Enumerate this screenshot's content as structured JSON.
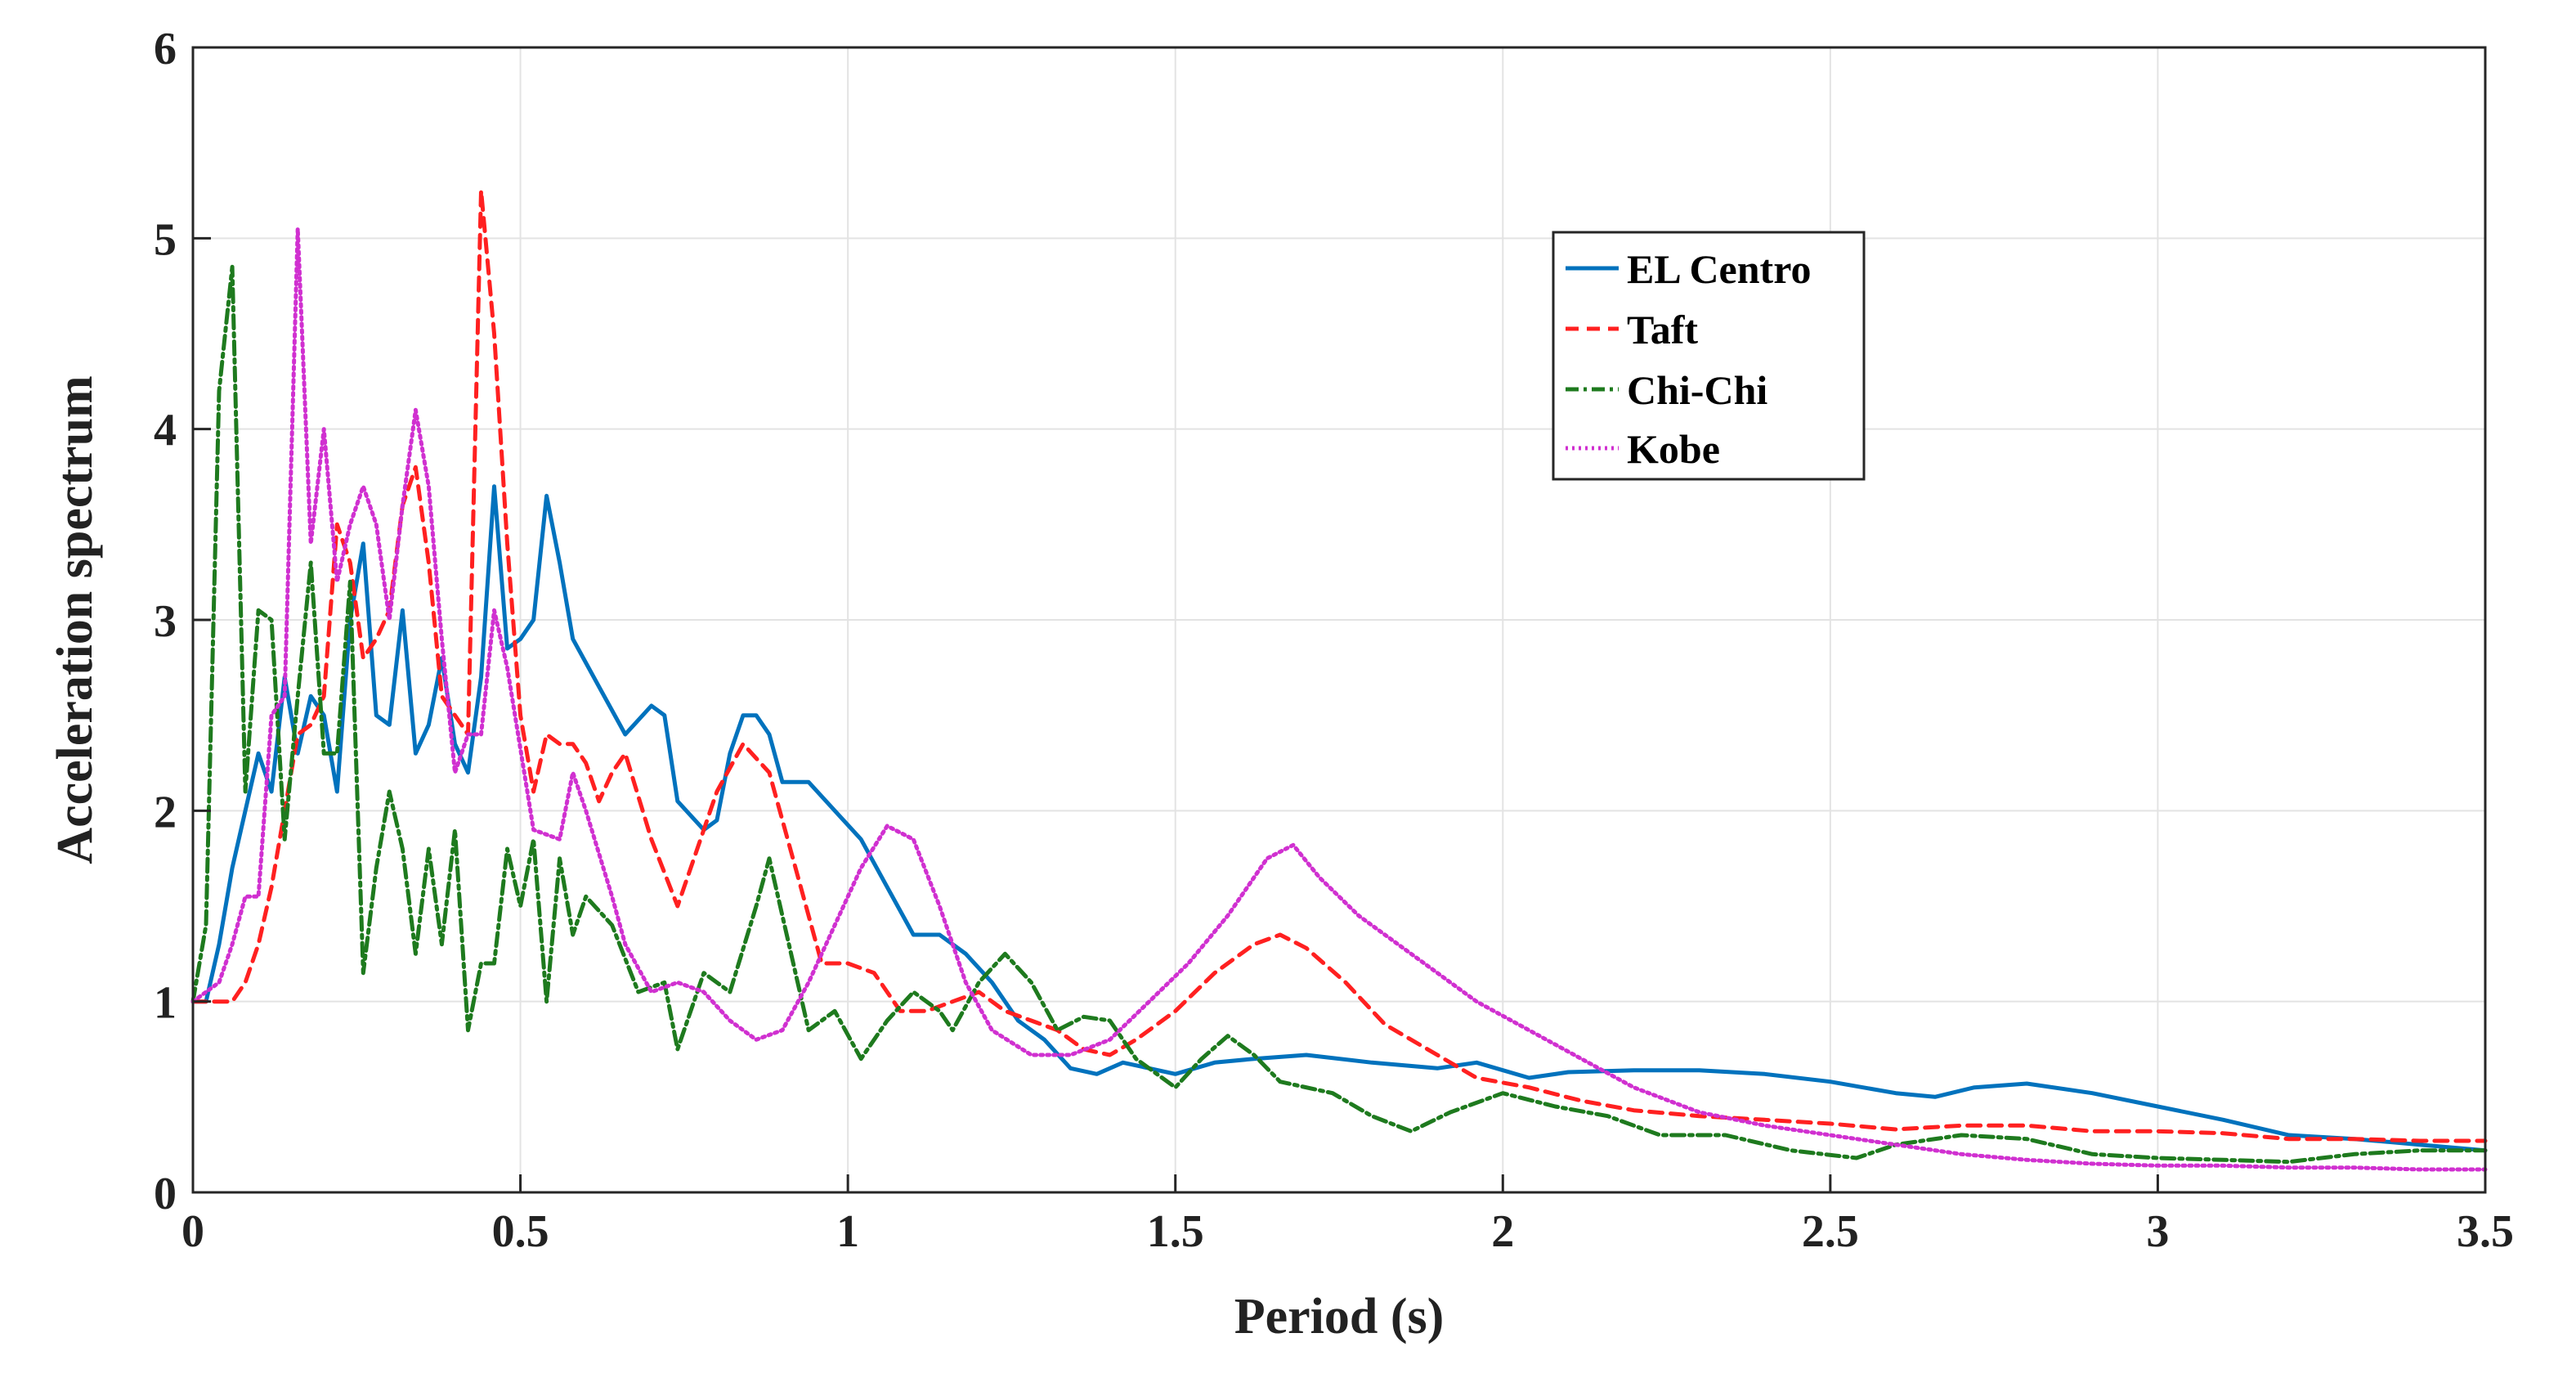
{
  "chart_data": {
    "type": "line",
    "xlabel": "Period (s)",
    "ylabel": "Acceleration spectrum",
    "xlim": [
      0,
      3.5
    ],
    "ylim": [
      0,
      6
    ],
    "xticks": [
      "0",
      "0.5",
      "1",
      "1.5",
      "2",
      "2.5",
      "3",
      "3.5"
    ],
    "yticks": [
      "0",
      "1",
      "2",
      "3",
      "4",
      "5",
      "6"
    ],
    "grid": true,
    "legend_position": "top-right",
    "series": [
      {
        "name": "EL Centro",
        "color": "#0072BD",
        "style": "solid",
        "points": [
          [
            0,
            1.0
          ],
          [
            0.02,
            1.0
          ],
          [
            0.04,
            1.3
          ],
          [
            0.06,
            1.7
          ],
          [
            0.08,
            2.0
          ],
          [
            0.1,
            2.3
          ],
          [
            0.12,
            2.1
          ],
          [
            0.14,
            2.7
          ],
          [
            0.16,
            2.3
          ],
          [
            0.18,
            2.6
          ],
          [
            0.2,
            2.5
          ],
          [
            0.22,
            2.1
          ],
          [
            0.24,
            3.0
          ],
          [
            0.26,
            3.4
          ],
          [
            0.28,
            2.5
          ],
          [
            0.3,
            2.45
          ],
          [
            0.32,
            3.05
          ],
          [
            0.34,
            2.3
          ],
          [
            0.36,
            2.45
          ],
          [
            0.38,
            2.8
          ],
          [
            0.4,
            2.35
          ],
          [
            0.42,
            2.2
          ],
          [
            0.44,
            2.7
          ],
          [
            0.46,
            3.7
          ],
          [
            0.48,
            2.85
          ],
          [
            0.5,
            2.9
          ],
          [
            0.52,
            3.0
          ],
          [
            0.54,
            3.65
          ],
          [
            0.56,
            3.3
          ],
          [
            0.58,
            2.9
          ],
          [
            0.62,
            2.65
          ],
          [
            0.66,
            2.4
          ],
          [
            0.7,
            2.55
          ],
          [
            0.72,
            2.5
          ],
          [
            0.74,
            2.05
          ],
          [
            0.78,
            1.9
          ],
          [
            0.8,
            1.95
          ],
          [
            0.82,
            2.3
          ],
          [
            0.84,
            2.5
          ],
          [
            0.86,
            2.5
          ],
          [
            0.88,
            2.4
          ],
          [
            0.9,
            2.15
          ],
          [
            0.94,
            2.15
          ],
          [
            0.98,
            2.0
          ],
          [
            1.02,
            1.85
          ],
          [
            1.06,
            1.6
          ],
          [
            1.1,
            1.35
          ],
          [
            1.14,
            1.35
          ],
          [
            1.18,
            1.25
          ],
          [
            1.22,
            1.1
          ],
          [
            1.26,
            0.9
          ],
          [
            1.3,
            0.8
          ],
          [
            1.34,
            0.65
          ],
          [
            1.38,
            0.62
          ],
          [
            1.42,
            0.68
          ],
          [
            1.46,
            0.65
          ],
          [
            1.5,
            0.62
          ],
          [
            1.56,
            0.68
          ],
          [
            1.62,
            0.7
          ],
          [
            1.7,
            0.72
          ],
          [
            1.8,
            0.68
          ],
          [
            1.9,
            0.65
          ],
          [
            1.96,
            0.68
          ],
          [
            2.04,
            0.6
          ],
          [
            2.1,
            0.63
          ],
          [
            2.2,
            0.64
          ],
          [
            2.3,
            0.64
          ],
          [
            2.4,
            0.62
          ],
          [
            2.5,
            0.58
          ],
          [
            2.6,
            0.52
          ],
          [
            2.66,
            0.5
          ],
          [
            2.72,
            0.55
          ],
          [
            2.8,
            0.57
          ],
          [
            2.9,
            0.52
          ],
          [
            3.0,
            0.45
          ],
          [
            3.1,
            0.38
          ],
          [
            3.2,
            0.3
          ],
          [
            3.3,
            0.28
          ],
          [
            3.4,
            0.25
          ],
          [
            3.5,
            0.22
          ]
        ]
      },
      {
        "name": "Taft",
        "color": "#FF2020",
        "style": "dashed",
        "points": [
          [
            0,
            1.0
          ],
          [
            0.04,
            1.0
          ],
          [
            0.06,
            1.0
          ],
          [
            0.08,
            1.1
          ],
          [
            0.1,
            1.3
          ],
          [
            0.12,
            1.6
          ],
          [
            0.14,
            2.0
          ],
          [
            0.16,
            2.4
          ],
          [
            0.18,
            2.45
          ],
          [
            0.2,
            2.6
          ],
          [
            0.22,
            3.5
          ],
          [
            0.24,
            3.3
          ],
          [
            0.26,
            2.8
          ],
          [
            0.28,
            2.9
          ],
          [
            0.3,
            3.05
          ],
          [
            0.32,
            3.6
          ],
          [
            0.34,
            3.8
          ],
          [
            0.36,
            3.3
          ],
          [
            0.38,
            2.6
          ],
          [
            0.4,
            2.5
          ],
          [
            0.42,
            2.4
          ],
          [
            0.44,
            5.25
          ],
          [
            0.46,
            4.5
          ],
          [
            0.48,
            3.4
          ],
          [
            0.5,
            2.5
          ],
          [
            0.52,
            2.1
          ],
          [
            0.54,
            2.4
          ],
          [
            0.56,
            2.35
          ],
          [
            0.58,
            2.35
          ],
          [
            0.6,
            2.25
          ],
          [
            0.62,
            2.05
          ],
          [
            0.64,
            2.2
          ],
          [
            0.66,
            2.3
          ],
          [
            0.7,
            1.85
          ],
          [
            0.74,
            1.5
          ],
          [
            0.76,
            1.7
          ],
          [
            0.8,
            2.1
          ],
          [
            0.84,
            2.35
          ],
          [
            0.88,
            2.2
          ],
          [
            0.92,
            1.7
          ],
          [
            0.96,
            1.2
          ],
          [
            1.0,
            1.2
          ],
          [
            1.04,
            1.15
          ],
          [
            1.08,
            0.95
          ],
          [
            1.12,
            0.95
          ],
          [
            1.16,
            1.0
          ],
          [
            1.2,
            1.05
          ],
          [
            1.24,
            0.95
          ],
          [
            1.28,
            0.9
          ],
          [
            1.32,
            0.85
          ],
          [
            1.36,
            0.75
          ],
          [
            1.4,
            0.72
          ],
          [
            1.44,
            0.8
          ],
          [
            1.5,
            0.95
          ],
          [
            1.56,
            1.15
          ],
          [
            1.62,
            1.3
          ],
          [
            1.66,
            1.35
          ],
          [
            1.7,
            1.28
          ],
          [
            1.76,
            1.1
          ],
          [
            1.82,
            0.88
          ],
          [
            1.9,
            0.72
          ],
          [
            1.96,
            0.6
          ],
          [
            2.04,
            0.55
          ],
          [
            2.12,
            0.48
          ],
          [
            2.2,
            0.43
          ],
          [
            2.3,
            0.4
          ],
          [
            2.4,
            0.38
          ],
          [
            2.5,
            0.36
          ],
          [
            2.6,
            0.33
          ],
          [
            2.7,
            0.35
          ],
          [
            2.8,
            0.35
          ],
          [
            2.9,
            0.32
          ],
          [
            3.0,
            0.32
          ],
          [
            3.1,
            0.31
          ],
          [
            3.2,
            0.28
          ],
          [
            3.3,
            0.28
          ],
          [
            3.4,
            0.27
          ],
          [
            3.5,
            0.27
          ]
        ]
      },
      {
        "name": "Chi-Chi",
        "color": "#1E7A1E",
        "style": "dashdot",
        "points": [
          [
            0,
            1.0
          ],
          [
            0.02,
            1.4
          ],
          [
            0.04,
            4.2
          ],
          [
            0.06,
            4.85
          ],
          [
            0.08,
            2.1
          ],
          [
            0.1,
            3.05
          ],
          [
            0.12,
            3.0
          ],
          [
            0.14,
            1.85
          ],
          [
            0.16,
            2.6
          ],
          [
            0.18,
            3.3
          ],
          [
            0.2,
            2.3
          ],
          [
            0.22,
            2.3
          ],
          [
            0.24,
            3.2
          ],
          [
            0.26,
            1.15
          ],
          [
            0.28,
            1.7
          ],
          [
            0.3,
            2.1
          ],
          [
            0.32,
            1.8
          ],
          [
            0.34,
            1.25
          ],
          [
            0.36,
            1.8
          ],
          [
            0.38,
            1.3
          ],
          [
            0.4,
            1.9
          ],
          [
            0.42,
            0.85
          ],
          [
            0.44,
            1.2
          ],
          [
            0.46,
            1.2
          ],
          [
            0.48,
            1.8
          ],
          [
            0.5,
            1.5
          ],
          [
            0.52,
            1.85
          ],
          [
            0.54,
            1.0
          ],
          [
            0.56,
            1.75
          ],
          [
            0.58,
            1.35
          ],
          [
            0.6,
            1.55
          ],
          [
            0.64,
            1.4
          ],
          [
            0.68,
            1.05
          ],
          [
            0.72,
            1.1
          ],
          [
            0.74,
            0.75
          ],
          [
            0.78,
            1.15
          ],
          [
            0.82,
            1.05
          ],
          [
            0.86,
            1.5
          ],
          [
            0.88,
            1.75
          ],
          [
            0.9,
            1.45
          ],
          [
            0.94,
            0.85
          ],
          [
            0.98,
            0.95
          ],
          [
            1.02,
            0.7
          ],
          [
            1.06,
            0.9
          ],
          [
            1.1,
            1.05
          ],
          [
            1.14,
            0.95
          ],
          [
            1.16,
            0.85
          ],
          [
            1.2,
            1.1
          ],
          [
            1.24,
            1.25
          ],
          [
            1.28,
            1.1
          ],
          [
            1.32,
            0.85
          ],
          [
            1.36,
            0.92
          ],
          [
            1.4,
            0.9
          ],
          [
            1.44,
            0.7
          ],
          [
            1.5,
            0.55
          ],
          [
            1.54,
            0.7
          ],
          [
            1.58,
            0.82
          ],
          [
            1.62,
            0.72
          ],
          [
            1.66,
            0.58
          ],
          [
            1.74,
            0.52
          ],
          [
            1.8,
            0.4
          ],
          [
            1.86,
            0.32
          ],
          [
            1.92,
            0.42
          ],
          [
            2.0,
            0.52
          ],
          [
            2.08,
            0.45
          ],
          [
            2.16,
            0.4
          ],
          [
            2.24,
            0.3
          ],
          [
            2.34,
            0.3
          ],
          [
            2.44,
            0.22
          ],
          [
            2.54,
            0.18
          ],
          [
            2.6,
            0.25
          ],
          [
            2.7,
            0.3
          ],
          [
            2.8,
            0.28
          ],
          [
            2.9,
            0.2
          ],
          [
            3.0,
            0.18
          ],
          [
            3.1,
            0.17
          ],
          [
            3.2,
            0.16
          ],
          [
            3.3,
            0.2
          ],
          [
            3.4,
            0.22
          ],
          [
            3.5,
            0.22
          ]
        ]
      },
      {
        "name": "Kobe",
        "color": "#D030D0",
        "style": "dotted",
        "points": [
          [
            0,
            1.0
          ],
          [
            0.04,
            1.1
          ],
          [
            0.06,
            1.3
          ],
          [
            0.08,
            1.55
          ],
          [
            0.1,
            1.55
          ],
          [
            0.12,
            2.5
          ],
          [
            0.14,
            2.6
          ],
          [
            0.16,
            5.05
          ],
          [
            0.18,
            3.4
          ],
          [
            0.2,
            4.0
          ],
          [
            0.22,
            3.2
          ],
          [
            0.24,
            3.5
          ],
          [
            0.26,
            3.7
          ],
          [
            0.28,
            3.5
          ],
          [
            0.3,
            3.0
          ],
          [
            0.32,
            3.6
          ],
          [
            0.34,
            4.1
          ],
          [
            0.36,
            3.7
          ],
          [
            0.38,
            2.9
          ],
          [
            0.4,
            2.2
          ],
          [
            0.42,
            2.4
          ],
          [
            0.44,
            2.4
          ],
          [
            0.46,
            3.05
          ],
          [
            0.48,
            2.75
          ],
          [
            0.52,
            1.9
          ],
          [
            0.56,
            1.85
          ],
          [
            0.58,
            2.2
          ],
          [
            0.6,
            2.0
          ],
          [
            0.64,
            1.55
          ],
          [
            0.66,
            1.3
          ],
          [
            0.7,
            1.05
          ],
          [
            0.74,
            1.1
          ],
          [
            0.78,
            1.05
          ],
          [
            0.82,
            0.9
          ],
          [
            0.86,
            0.8
          ],
          [
            0.9,
            0.85
          ],
          [
            0.94,
            1.1
          ],
          [
            0.98,
            1.4
          ],
          [
            1.02,
            1.7
          ],
          [
            1.06,
            1.92
          ],
          [
            1.1,
            1.85
          ],
          [
            1.14,
            1.5
          ],
          [
            1.18,
            1.1
          ],
          [
            1.22,
            0.85
          ],
          [
            1.28,
            0.72
          ],
          [
            1.34,
            0.72
          ],
          [
            1.4,
            0.8
          ],
          [
            1.46,
            1.0
          ],
          [
            1.52,
            1.2
          ],
          [
            1.58,
            1.45
          ],
          [
            1.64,
            1.75
          ],
          [
            1.68,
            1.82
          ],
          [
            1.72,
            1.65
          ],
          [
            1.78,
            1.45
          ],
          [
            1.84,
            1.3
          ],
          [
            1.9,
            1.15
          ],
          [
            1.96,
            1.0
          ],
          [
            2.04,
            0.85
          ],
          [
            2.12,
            0.7
          ],
          [
            2.2,
            0.55
          ],
          [
            2.3,
            0.42
          ],
          [
            2.4,
            0.35
          ],
          [
            2.5,
            0.3
          ],
          [
            2.6,
            0.25
          ],
          [
            2.7,
            0.2
          ],
          [
            2.8,
            0.17
          ],
          [
            2.9,
            0.15
          ],
          [
            3.0,
            0.14
          ],
          [
            3.1,
            0.14
          ],
          [
            3.2,
            0.13
          ],
          [
            3.3,
            0.13
          ],
          [
            3.4,
            0.12
          ],
          [
            3.5,
            0.12
          ]
        ]
      }
    ]
  }
}
